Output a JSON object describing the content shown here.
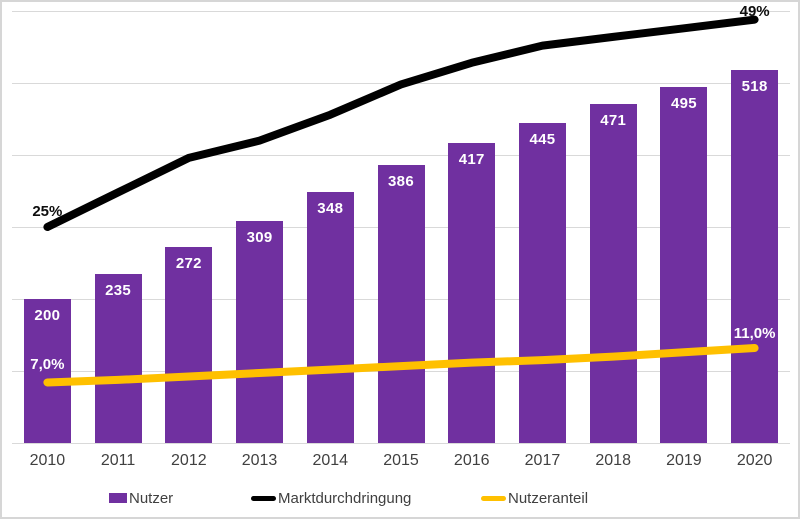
{
  "chart_data": {
    "type": "bar",
    "title": "",
    "categories": [
      "2010",
      "2011",
      "2012",
      "2013",
      "2014",
      "2015",
      "2016",
      "2017",
      "2018",
      "2019",
      "2020"
    ],
    "series": [
      {
        "name": "Nutzer",
        "chart_type": "bar",
        "axis": "primary",
        "color": "#7030A0",
        "label_color": "#FFFFFF",
        "values": [
          200,
          235,
          272,
          309,
          348,
          386,
          417,
          445,
          471,
          495,
          518
        ],
        "value_labels": [
          "200",
          "235",
          "272",
          "309",
          "348",
          "386",
          "417",
          "445",
          "471",
          "495",
          "518"
        ]
      },
      {
        "name": "Marktdurchdringung",
        "chart_type": "line",
        "axis": "secondary",
        "color": "#000000",
        "label_color": "#0D0D0D",
        "values": [
          25,
          29,
          33,
          35,
          38,
          41.5,
          44,
          46,
          47,
          48,
          49
        ],
        "first_label": "25%",
        "last_label": "49%"
      },
      {
        "name": "Nutzeranteil",
        "chart_type": "line",
        "axis": "secondary",
        "color": "#FFC000",
        "label_color": "#FFFFFF",
        "values": [
          7.0,
          7.3,
          7.7,
          8.1,
          8.5,
          8.9,
          9.3,
          9.6,
          10.0,
          10.5,
          11.0
        ],
        "first_label": "7,0%",
        "last_label": "11,0%"
      }
    ],
    "primary_ylim": [
      0,
      600
    ],
    "primary_grid_step": 100,
    "secondary_ylim": [
      0,
      50
    ],
    "gridlines": "horizontal",
    "legend_position": "bottom"
  },
  "colors": {
    "background": "#FFFFFF",
    "border": "#D6D6D6",
    "grid": "#D9D9D9",
    "axis_text": "#404040"
  }
}
